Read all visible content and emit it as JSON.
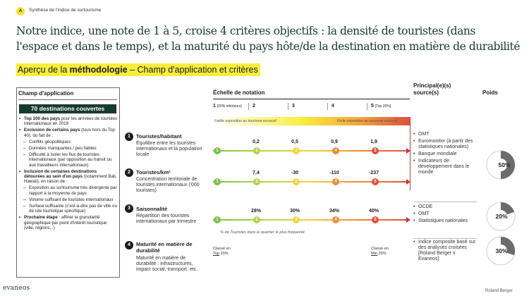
{
  "header": {
    "badge": "A",
    "breadcrumb": "Synthèse de l'indice de surtourisme",
    "headline": "Notre indice, une note de 1 à 5, croise 4 critères objectifs : la densité de touristes (dans l'espace et dans le temps), et la maturité du pays hôte/de la destination en matière de durabilité"
  },
  "subtitle": {
    "pre": "Aperçu de la ",
    "bold": "méthodologie",
    "post": " – Champ d'application et critères"
  },
  "scope": {
    "title": "Champ d'application",
    "highlight": "70 destinations couvertes",
    "b1_bold": "Top 100 des pays",
    "b1_rest": " pour les arrivées de touristes internationaux en 2019",
    "b2_bold": "Exclusion de certains pays",
    "b2_rest": " (tous hors du Top 40), du fait de :",
    "b2_sub": [
      "Conflits géopolitiques",
      "Données manquantes / peu fiables",
      "Difficulté à isoler les flux de touristes internationaux (par opposition au transit ou aux travailleurs internationaux)"
    ],
    "b3_bold": "Inclusion de certaines destinations détourées au sein d'un pays",
    "b3_rest": " (notamment Bali, Hawaii), en raison de :",
    "b3_sub": [
      "Exposition au surtourisme très divergente par rapport à la moyenne du pays",
      "Volume suffisant de touristes internationaux",
      "Surface suffisante (c'est-à-dire pas de ville ou de site touristique spécifique)"
    ],
    "b4_bold": "Prochaine étape",
    "b4_rest": " : affiner la granularité géographique par point d'intérêt touristique (ville, régions,..)"
  },
  "columns": {
    "scale": "Échelle de notation",
    "sources": "Principal(e)(s) source(s)",
    "weight": "Poids"
  },
  "scale": {
    "n1": "1",
    "n1_note": "[20% inférieurs]",
    "n2": "2",
    "n3": "3",
    "n4": "4",
    "n5": "5",
    "n5_note": "[Top 20%]",
    "low": "Faible exposition au tourisme excessif",
    "high": "Forte exposition au tourisme excessif"
  },
  "criteria": [
    {
      "num": "1",
      "title": "Touristes/habitant",
      "desc": "Équilibre entre les touristes internationaux et la population locale",
      "thresholds": [
        "0,2",
        "0,5",
        "0,9",
        "1,9"
      ],
      "sources": [
        "OMT",
        "Euromonitor (à partir des statistiques nationales)",
        "Banque mondiale",
        "Indicateurs de développement dans le monde"
      ],
      "weight": "50%",
      "weight_value": 50
    },
    {
      "num": "2",
      "title": "Touristes/km²",
      "desc": "Concentration territoriale de touristes internationaux ('000 touristes)",
      "thresholds": [
        "7,4",
        "-30",
        "-110",
        "-237"
      ]
    },
    {
      "num": "3",
      "title": "Saisonnalité",
      "desc": "Répartition des touristes internationaux par trimestre",
      "thresholds": [
        "28%",
        "30%",
        "34%",
        "40%"
      ],
      "footnote": "% de Touristes dans le quartier le plus fréquenté",
      "sources": [
        "OCDE",
        "OMT",
        "Statistiques nationales"
      ],
      "weight": "20%",
      "weight_value": 20
    },
    {
      "num": "4",
      "title": "Maturité en matière de durabilité",
      "desc": "Maturité en matière de durabilité : infrastructures, impact social, transport, etc.",
      "left_label_1": "Classé en",
      "left_label_2": "Top",
      "left_label_3": " 20%",
      "right_label_1": "Classé en",
      "right_label_2": "Min",
      "right_label_3": " 20%",
      "sources": [
        "Indice composite basé sur des analyses croisées [Roland Berger x Evaneos]"
      ],
      "weight": "30%",
      "weight_value": 30
    }
  ],
  "dot_labels": [
    "1",
    "2",
    "3",
    "4",
    "5"
  ],
  "colors": {
    "green": "#7cc04a",
    "lightgreen": "#b3d44a",
    "yellow": "#f2d43a",
    "orange": "#ef8a3a",
    "red": "#e0503c",
    "brand": "#173b2b",
    "accent": "#f7ee3c"
  },
  "footer": {
    "logo": "evaneos",
    "credit": "Roland Berger"
  }
}
